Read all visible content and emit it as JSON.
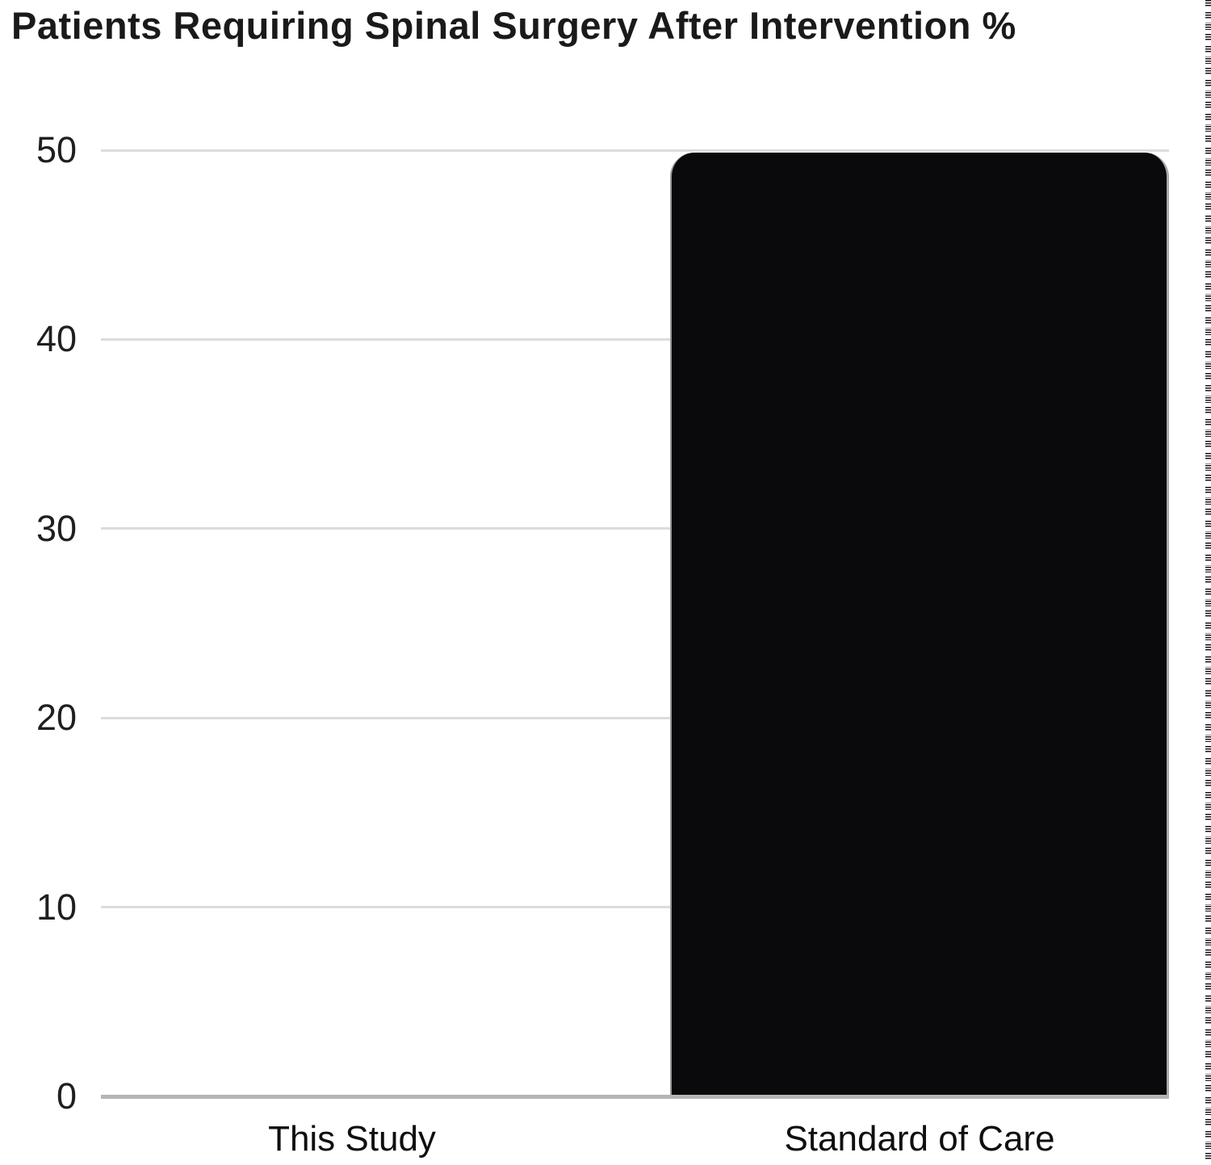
{
  "chart_data": {
    "type": "bar",
    "title": "Patients Requiring Spinal Surgery After Intervention %",
    "categories": [
      "This Study",
      "Standard of Care"
    ],
    "values": [
      0,
      50
    ],
    "xlabel": "",
    "ylabel": "",
    "ylim": [
      0,
      50
    ],
    "yticks": [
      0,
      10,
      20,
      30,
      40,
      50
    ],
    "grid": true,
    "legend": false,
    "legend_position": "none",
    "bar_color": "#0a0a0d",
    "gridline_color": "#dcdcdc",
    "baseline_color": "#b5b5b5",
    "title_color": "#1a1a1a",
    "tick_label_color": "#1f1f1f",
    "category_label_color": "#0f0f0f",
    "background_color": "#ffffff"
  },
  "decorations": {
    "right_edge_dashed_selection_border": true,
    "bottom_labels_clipped_duplicate": true
  }
}
